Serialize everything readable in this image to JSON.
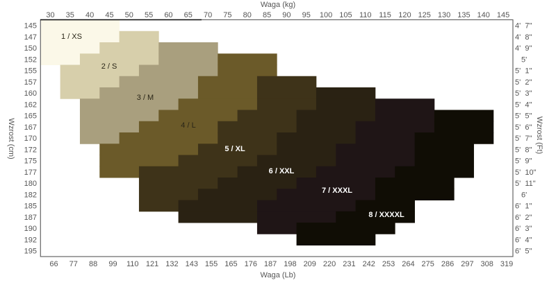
{
  "chart_data": {
    "type": "heatmap",
    "title": "",
    "top_axis_label": "Waga  (kg)",
    "bottom_axis_label": "Waga  (Lb)",
    "left_axis_label": "Wzrost  (cm)",
    "right_axis_label": "Wzrost  (Ft)",
    "kg_ticks": [
      "30",
      "35",
      "40",
      "45",
      "50",
      "55",
      "60",
      "65",
      "70",
      "75",
      "80",
      "85",
      "90",
      "95",
      "100",
      "105",
      "110",
      "115",
      "120",
      "125",
      "130",
      "135",
      "140",
      "145"
    ],
    "lb_ticks": [
      "66",
      "77",
      "88",
      "99",
      "110",
      "121",
      "132",
      "143",
      "155",
      "165",
      "176",
      "187",
      "198",
      "209",
      "220",
      "231",
      "242",
      "253",
      "264",
      "275",
      "286",
      "297",
      "308",
      "319"
    ],
    "cm_ticks": [
      "145",
      "147",
      "150",
      "152",
      "155",
      "157",
      "160",
      "162",
      "165",
      "167",
      "170",
      "172",
      "175",
      "177",
      "180",
      "182",
      "185",
      "187",
      "190",
      "192",
      "195"
    ],
    "ft_ticks": [
      "4'  7\"",
      "4'  8\"",
      "4'  9\"",
      "5'",
      "5'  1\"",
      "5'  2\"",
      "5'  3\"",
      "5'  4\"",
      "5'  5\"",
      "5'  6\"",
      "5'  7\"",
      "5'  8\"",
      "5'  9\"",
      "5'  10\"",
      "5'  11\"",
      "6'",
      "6'  1\"",
      "6'  2\"",
      "6'  3\"",
      "6'  4\"",
      "6'  5\""
    ],
    "sizes": [
      {
        "label": "1  /  XS",
        "color": "#fbf8e8",
        "text_color": "dark",
        "rows": [
          [
            145,
            30,
            45
          ],
          [
            147,
            30,
            45
          ],
          [
            150,
            30,
            45
          ],
          [
            152,
            30,
            45
          ]
        ]
      },
      {
        "label": "2  /  S",
        "color": "#d7cfab",
        "text_color": "dark",
        "rows": [
          [
            147,
            50,
            55
          ],
          [
            150,
            45,
            55
          ],
          [
            152,
            40,
            55
          ],
          [
            155,
            35,
            50
          ],
          [
            157,
            35,
            45
          ],
          [
            160,
            35,
            40
          ]
        ]
      },
      {
        "label": "3  /  M",
        "color": "#a99f7e",
        "text_color": "dark",
        "rows": [
          [
            150,
            60,
            70
          ],
          [
            152,
            60,
            70
          ],
          [
            155,
            55,
            70
          ],
          [
            157,
            50,
            65
          ],
          [
            160,
            45,
            65
          ],
          [
            162,
            40,
            60
          ],
          [
            165,
            40,
            55
          ],
          [
            167,
            40,
            50
          ],
          [
            170,
            40,
            45
          ]
        ]
      },
      {
        "label": "4  /  L",
        "color": "#6b5a29",
        "text_color": "dark",
        "rows": [
          [
            152,
            75,
            85
          ],
          [
            155,
            75,
            85
          ],
          [
            157,
            70,
            80
          ],
          [
            160,
            70,
            80
          ],
          [
            162,
            65,
            80
          ],
          [
            165,
            60,
            75
          ],
          [
            167,
            55,
            70
          ],
          [
            170,
            50,
            70
          ],
          [
            172,
            45,
            65
          ],
          [
            175,
            45,
            60
          ],
          [
            177,
            45,
            50
          ]
        ]
      },
      {
        "label": "5  /  XL",
        "color": "#3e3319",
        "text_color": "light",
        "rows": [
          [
            157,
            85,
            95
          ],
          [
            160,
            85,
            95
          ],
          [
            162,
            85,
            95
          ],
          [
            165,
            80,
            90
          ],
          [
            167,
            75,
            90
          ],
          [
            170,
            75,
            85
          ],
          [
            172,
            70,
            85
          ],
          [
            175,
            65,
            80
          ],
          [
            177,
            55,
            75
          ],
          [
            180,
            55,
            70
          ],
          [
            182,
            55,
            65
          ],
          [
            185,
            55,
            60
          ]
        ]
      },
      {
        "label": "6  /  XXL",
        "color": "#2a2213",
        "text_color": "light",
        "rows": [
          [
            160,
            100,
            110
          ],
          [
            162,
            100,
            110
          ],
          [
            165,
            95,
            110
          ],
          [
            167,
            95,
            105
          ],
          [
            170,
            90,
            105
          ],
          [
            172,
            90,
            100
          ],
          [
            175,
            85,
            100
          ],
          [
            177,
            80,
            95
          ],
          [
            180,
            75,
            90
          ],
          [
            182,
            70,
            85
          ],
          [
            185,
            65,
            80
          ],
          [
            187,
            65,
            80
          ]
        ]
      },
      {
        "label": "7  /  XXXL",
        "color": "#1f1516",
        "text_color": "light",
        "rows": [
          [
            162,
            115,
            125
          ],
          [
            165,
            115,
            125
          ],
          [
            167,
            110,
            125
          ],
          [
            170,
            110,
            120
          ],
          [
            172,
            105,
            120
          ],
          [
            175,
            105,
            120
          ],
          [
            177,
            100,
            115
          ],
          [
            180,
            95,
            110
          ],
          [
            182,
            90,
            110
          ],
          [
            185,
            85,
            105
          ],
          [
            187,
            85,
            100
          ],
          [
            190,
            85,
            90
          ]
        ]
      },
      {
        "label": "8  /  XXXXL",
        "color": "#100d05",
        "text_color": "light",
        "rows": [
          [
            165,
            130,
            140
          ],
          [
            167,
            130,
            140
          ],
          [
            170,
            125,
            140
          ],
          [
            172,
            125,
            135
          ],
          [
            175,
            125,
            135
          ],
          [
            177,
            120,
            135
          ],
          [
            180,
            115,
            130
          ],
          [
            182,
            115,
            130
          ],
          [
            185,
            110,
            120
          ],
          [
            187,
            105,
            120
          ],
          [
            190,
            95,
            115
          ],
          [
            192,
            95,
            110
          ]
        ]
      }
    ]
  }
}
